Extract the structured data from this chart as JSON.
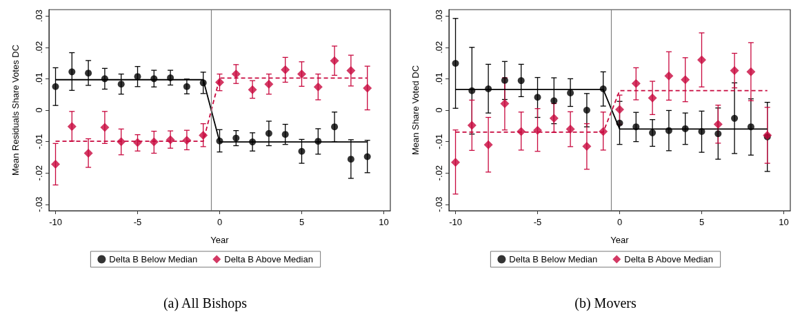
{
  "chart_data": [
    {
      "type": "scatter",
      "xlabel": "Year",
      "ylabel": "Mean Residuals Share Votes DC",
      "annotations": [
        "(a) All Bishops"
      ],
      "xlim": [
        -10.4,
        10.4
      ],
      "xticks": [
        -10,
        -5,
        0,
        5,
        10
      ],
      "ylim": [
        -0.032,
        0.032
      ],
      "yticks": [
        {
          "value": -0.03,
          "label": "-.03"
        },
        {
          "value": -0.02,
          "label": "-.02"
        },
        {
          "value": -0.01,
          "label": "-.01"
        },
        0,
        {
          "value": 0.01,
          "label": ".01"
        },
        {
          "value": 0.02,
          "label": ".02"
        },
        {
          "value": 0.03,
          "label": ".03"
        }
      ],
      "grid": false,
      "legend": "bottom",
      "ref_lines": [
        {
          "axis": "x",
          "value": -0.5,
          "color": "#808080"
        }
      ],
      "series": [
        {
          "type": "line",
          "color": "#000000",
          "line_style": "solid",
          "marker": "none",
          "x": [
            -10,
            -1,
            0,
            9
          ],
          "values": [
            0.0097,
            0.0097,
            -0.0101,
            -0.0101
          ]
        },
        {
          "type": "line",
          "color": "#c8073d",
          "line_style": "dashed",
          "marker": "none",
          "x": [
            -10,
            -1,
            0,
            9
          ],
          "values": [
            -0.0099,
            -0.0099,
            0.0102,
            0.0102
          ]
        },
        {
          "name": "Delta B Below Median",
          "color": "#000000",
          "marker": "circle",
          "x": [
            -10,
            -9,
            -8,
            -7,
            -6,
            -5,
            -4,
            -3,
            -2,
            -1,
            0,
            1,
            2,
            3,
            4,
            5,
            6,
            7,
            8,
            9
          ],
          "values": [
            0.0075,
            0.0122,
            0.0118,
            0.01,
            0.0083,
            0.0107,
            0.01,
            0.0103,
            0.0075,
            0.0087,
            -0.0098,
            -0.0089,
            -0.0101,
            -0.0074,
            -0.0077,
            -0.0131,
            -0.0099,
            -0.0053,
            -0.0156,
            -0.0148
          ],
          "errors": [
            [
              0.0015,
              0.0135
            ],
            [
              0.0063,
              0.0183
            ],
            [
              0.0079,
              0.0158
            ],
            [
              0.0067,
              0.0133
            ],
            [
              0.0051,
              0.0115
            ],
            [
              0.0075,
              0.0139
            ],
            [
              0.0074,
              0.0127
            ],
            [
              0.008,
              0.0127
            ],
            [
              0.0052,
              0.0099
            ],
            [
              0.0053,
              0.0121
            ],
            [
              -0.0133,
              -0.0062
            ],
            [
              -0.0113,
              -0.0065
            ],
            [
              -0.013,
              -0.0072
            ],
            [
              -0.0113,
              -0.0035
            ],
            [
              -0.0109,
              -0.0045
            ],
            [
              -0.0169,
              -0.0093
            ],
            [
              -0.014,
              -0.0059
            ],
            [
              -0.0101,
              -0.0006
            ],
            [
              -0.0217,
              -0.0094
            ],
            [
              -0.0199,
              -0.0096
            ]
          ]
        },
        {
          "name": "Delta B Above Median",
          "color": "#c8073d",
          "marker": "diamond",
          "x": [
            -10,
            -9,
            -8,
            -7,
            -6,
            -5,
            -4,
            -3,
            -2,
            -1,
            0,
            1,
            2,
            3,
            4,
            5,
            6,
            7,
            8,
            9
          ],
          "values": [
            -0.0172,
            -0.0052,
            -0.0137,
            -0.0055,
            -0.01,
            -0.0103,
            -0.0101,
            -0.0094,
            -0.0096,
            -0.008,
            0.0089,
            0.0115,
            0.0065,
            0.0083,
            0.0129,
            0.0115,
            0.0074,
            0.0157,
            0.0126,
            0.007
          ],
          "errors": [
            [
              -0.0238,
              -0.0106
            ],
            [
              -0.0098,
              -0.0004
            ],
            [
              -0.0182,
              -0.0091
            ],
            [
              -0.0106,
              -0.0004
            ],
            [
              -0.0142,
              -0.006
            ],
            [
              -0.013,
              -0.0078
            ],
            [
              -0.0137,
              -0.0067
            ],
            [
              -0.0121,
              -0.0066
            ],
            [
              -0.0126,
              -0.0064
            ],
            [
              -0.0116,
              -0.0043
            ],
            [
              0.0062,
              0.0115
            ],
            [
              0.0085,
              0.0145
            ],
            [
              0.0038,
              0.0094
            ],
            [
              0.0051,
              0.0115
            ],
            [
              0.0089,
              0.0168
            ],
            [
              0.0076,
              0.0154
            ],
            [
              0.0033,
              0.0115
            ],
            [
              0.0111,
              0.0204
            ],
            [
              0.0077,
              0.0175
            ],
            [
              0.0001,
              0.014
            ]
          ]
        }
      ]
    },
    {
      "type": "scatter",
      "xlabel": "Year",
      "ylabel": "Mean Share Voted DC",
      "annotations": [
        "(b) Movers"
      ],
      "xlim": [
        -10.4,
        10.4
      ],
      "xticks": [
        -10,
        -5,
        0,
        5,
        10
      ],
      "ylim": [
        -0.032,
        0.032
      ],
      "yticks": [
        {
          "value": -0.03,
          "label": "-.03"
        },
        {
          "value": -0.02,
          "label": "-.02"
        },
        {
          "value": -0.01,
          "label": "-.01"
        },
        0,
        {
          "value": 0.01,
          "label": ".01"
        },
        {
          "value": 0.02,
          "label": ".02"
        },
        {
          "value": 0.03,
          "label": ".03"
        }
      ],
      "grid": false,
      "legend": "bottom",
      "ref_lines": [
        {
          "axis": "x",
          "value": -0.5,
          "color": "#808080"
        }
      ],
      "series": [
        {
          "type": "line",
          "color": "#000000",
          "line_style": "solid",
          "marker": "none",
          "x": [
            -10,
            -1,
            0,
            9
          ],
          "values": [
            0.0066,
            0.0066,
            -0.006,
            -0.006
          ]
        },
        {
          "type": "line",
          "color": "#c8073d",
          "line_style": "dashed",
          "marker": "none",
          "x": [
            -10,
            -1,
            0,
            9
          ],
          "values": [
            -0.007,
            -0.007,
            0.0062,
            0.0062
          ]
        },
        {
          "name": "Delta B Below Median",
          "color": "#000000",
          "marker": "circle",
          "x": [
            -10,
            -9,
            -8,
            -7,
            -6,
            -5,
            -4,
            -3,
            -2,
            -1,
            0,
            1,
            2,
            3,
            4,
            5,
            6,
            7,
            8,
            9
          ],
          "values": [
            0.0149,
            0.0062,
            0.0068,
            0.0095,
            0.0094,
            0.0041,
            0.003,
            0.0055,
            0,
            0.0068,
            -0.0041,
            -0.0053,
            -0.0072,
            -0.0065,
            -0.0059,
            -0.0068,
            -0.0075,
            -0.0026,
            -0.0053,
            -0.0085
          ],
          "errors": [
            [
              0.0006,
              0.0292
            ],
            [
              -0.0076,
              0.02
            ],
            [
              -0.0009,
              0.0146
            ],
            [
              0.0034,
              0.0155
            ],
            [
              0.0043,
              0.0146
            ],
            [
              -0.0023,
              0.0104
            ],
            [
              -0.0043,
              0.0103
            ],
            [
              0.0012,
              0.01
            ],
            [
              -0.0053,
              0.0053
            ],
            [
              0.0013,
              0.0122
            ],
            [
              -0.0109,
              0.0028
            ],
            [
              -0.01,
              -0.0007
            ],
            [
              -0.0115,
              -0.003
            ],
            [
              -0.0129,
              -0.0001
            ],
            [
              -0.0109,
              -0.0009
            ],
            [
              -0.0134,
              -0.0003
            ],
            [
              -0.0156,
              0.0007
            ],
            [
              -0.0138,
              0.0087
            ],
            [
              -0.0143,
              0.0036
            ],
            [
              -0.0195,
              0.0025
            ]
          ]
        },
        {
          "name": "Delta B Above Median",
          "color": "#c8073d",
          "marker": "diamond",
          "x": [
            -10,
            -9,
            -8,
            -7,
            -6,
            -5,
            -4,
            -3,
            -2,
            -1,
            0,
            1,
            2,
            3,
            4,
            5,
            6,
            7,
            8,
            9
          ],
          "values": [
            -0.0166,
            -0.0048,
            -0.011,
            0.0021,
            -0.0068,
            -0.0064,
            -0.0026,
            -0.006,
            -0.0115,
            -0.0068,
            0.0002,
            0.0085,
            0.0039,
            0.0109,
            0.0097,
            0.016,
            -0.0045,
            0.0126,
            0.0122,
            -0.008
          ],
          "errors": [
            [
              -0.0267,
              -0.0063
            ],
            [
              -0.0128,
              0.0032
            ],
            [
              -0.0197,
              -0.0023
            ],
            [
              -0.0063,
              0.0103
            ],
            [
              -0.0127,
              -0.0006
            ],
            [
              -0.0131,
              0.0005
            ],
            [
              -0.0071,
              0.0021
            ],
            [
              -0.0116,
              -0.0005
            ],
            [
              -0.0188,
              -0.0043
            ],
            [
              -0.0127,
              -0.0006
            ],
            [
              -0.0045,
              0.0048
            ],
            [
              0.0033,
              0.0135
            ],
            [
              -0.0014,
              0.0092
            ],
            [
              0.0032,
              0.0186
            ],
            [
              0.0027,
              0.0167
            ],
            [
              0.0074,
              0.0246
            ],
            [
              -0.0105,
              0.0016
            ],
            [
              0.0071,
              0.0181
            ],
            [
              0.003,
              0.0215
            ],
            [
              -0.0169,
              0.0009
            ]
          ]
        }
      ]
    }
  ]
}
